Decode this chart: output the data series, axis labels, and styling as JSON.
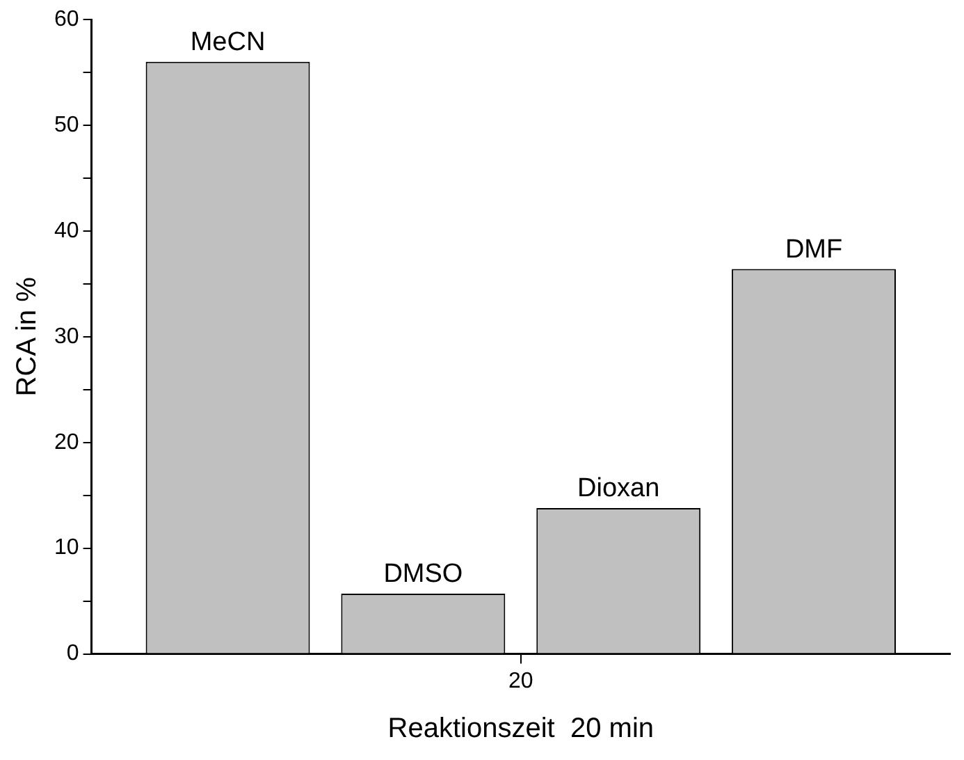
{
  "chart_data": {
    "type": "bar",
    "categories": [
      "20"
    ],
    "xlabel": "Reaktionszeit  20 min",
    "ylabel": "RCA in %",
    "series": [
      {
        "name": "MeCN",
        "color": "#c0c0c0",
        "values": [
          56
        ]
      },
      {
        "name": "DMSO",
        "color": "#c0c0c0",
        "values": [
          5.7
        ]
      },
      {
        "name": "Dioxan",
        "color": "#c0c0c0",
        "values": [
          13.8
        ]
      },
      {
        "name": "DMF",
        "color": "#c0c0c0",
        "values": [
          36.4
        ]
      }
    ],
    "ylim": [
      0,
      60
    ],
    "yticks": [
      0,
      {
        "value": 5,
        "label": null
      },
      10,
      {
        "value": 15,
        "label": null
      },
      20,
      {
        "value": 25,
        "label": null
      },
      30,
      {
        "value": 35,
        "label": null
      },
      40,
      {
        "value": 45,
        "label": null
      },
      50,
      {
        "value": 55,
        "label": null
      },
      60
    ],
    "grid": false,
    "legend": false
  }
}
